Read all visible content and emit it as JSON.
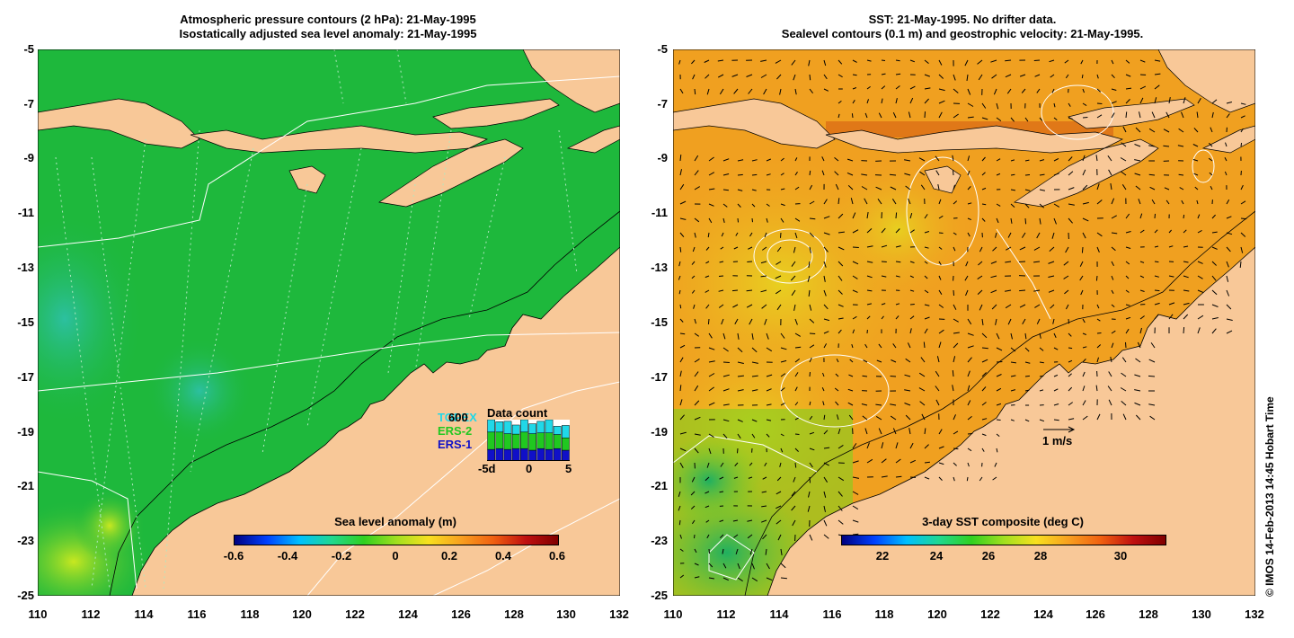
{
  "left": {
    "title_line1": "Atmospheric pressure contours (2 hPa): 21-May-1995",
    "title_line2": "Isostatically adjusted sea level anomaly: 21-May-1995",
    "colorbar_title": "Sea level anomaly (m)",
    "colorbar_ticks": [
      "-0.6",
      "-0.4",
      "-0.2",
      "0",
      "0.2",
      "0.4",
      "0.6"
    ],
    "legend": {
      "title": "Data count",
      "count_label": "600",
      "missions": [
        {
          "name": "TOPEX",
          "color": "#20d8e8"
        },
        {
          "name": "ERS-2",
          "color": "#20c820"
        },
        {
          "name": "ERS-1",
          "color": "#1010c8"
        }
      ],
      "day_ticks": [
        "-5d",
        "0",
        "5"
      ],
      "bars": [
        {
          "day": -5,
          "ers1": 0.28,
          "ers2": 0.42,
          "topex": 0.3
        },
        {
          "day": -4,
          "ers1": 0.3,
          "ers2": 0.4,
          "topex": 0.25
        },
        {
          "day": -3,
          "ers1": 0.28,
          "ers2": 0.38,
          "topex": 0.3
        },
        {
          "day": -2,
          "ers1": 0.3,
          "ers2": 0.35,
          "topex": 0.22
        },
        {
          "day": -1,
          "ers1": 0.3,
          "ers2": 0.4,
          "topex": 0.3
        },
        {
          "day": 0,
          "ers1": 0.26,
          "ers2": 0.4,
          "topex": 0.24
        },
        {
          "day": 1,
          "ers1": 0.3,
          "ers2": 0.38,
          "topex": 0.28
        },
        {
          "day": 2,
          "ers1": 0.28,
          "ers2": 0.4,
          "topex": 0.32
        },
        {
          "day": 3,
          "ers1": 0.3,
          "ers2": 0.34,
          "topex": 0.2
        },
        {
          "day": 4,
          "ers1": 0.26,
          "ers2": 0.3,
          "topex": 0.3
        }
      ]
    }
  },
  "right": {
    "title_line1": "SST: 21-May-1995. No drifter data.",
    "title_line2": "Sealevel contours (0.1 m) and geostrophic velocity: 21-May-1995.",
    "colorbar_title": "3-day SST composite (deg C)",
    "colorbar_ticks": [
      "22",
      "24",
      "26",
      "28",
      "30"
    ],
    "velocity_label": "1 m/s"
  },
  "axes": {
    "lat_ticks": [
      "-5",
      "-7",
      "-9",
      "-11",
      "-13",
      "-15",
      "-17",
      "-19",
      "-21",
      "-23",
      "-25"
    ],
    "lon_ticks": [
      "110",
      "112",
      "114",
      "116",
      "118",
      "120",
      "122",
      "124",
      "126",
      "128",
      "130",
      "132"
    ],
    "lon_range": [
      110,
      132
    ],
    "lat_range": [
      -25,
      -5
    ]
  },
  "colors": {
    "land": "#f8c898",
    "ocean_sla": "#1eb83c",
    "ocean_sst": "#f0a020"
  },
  "copyright": "© IMOS 14-Feb-2013 14:45 Hobart Time"
}
